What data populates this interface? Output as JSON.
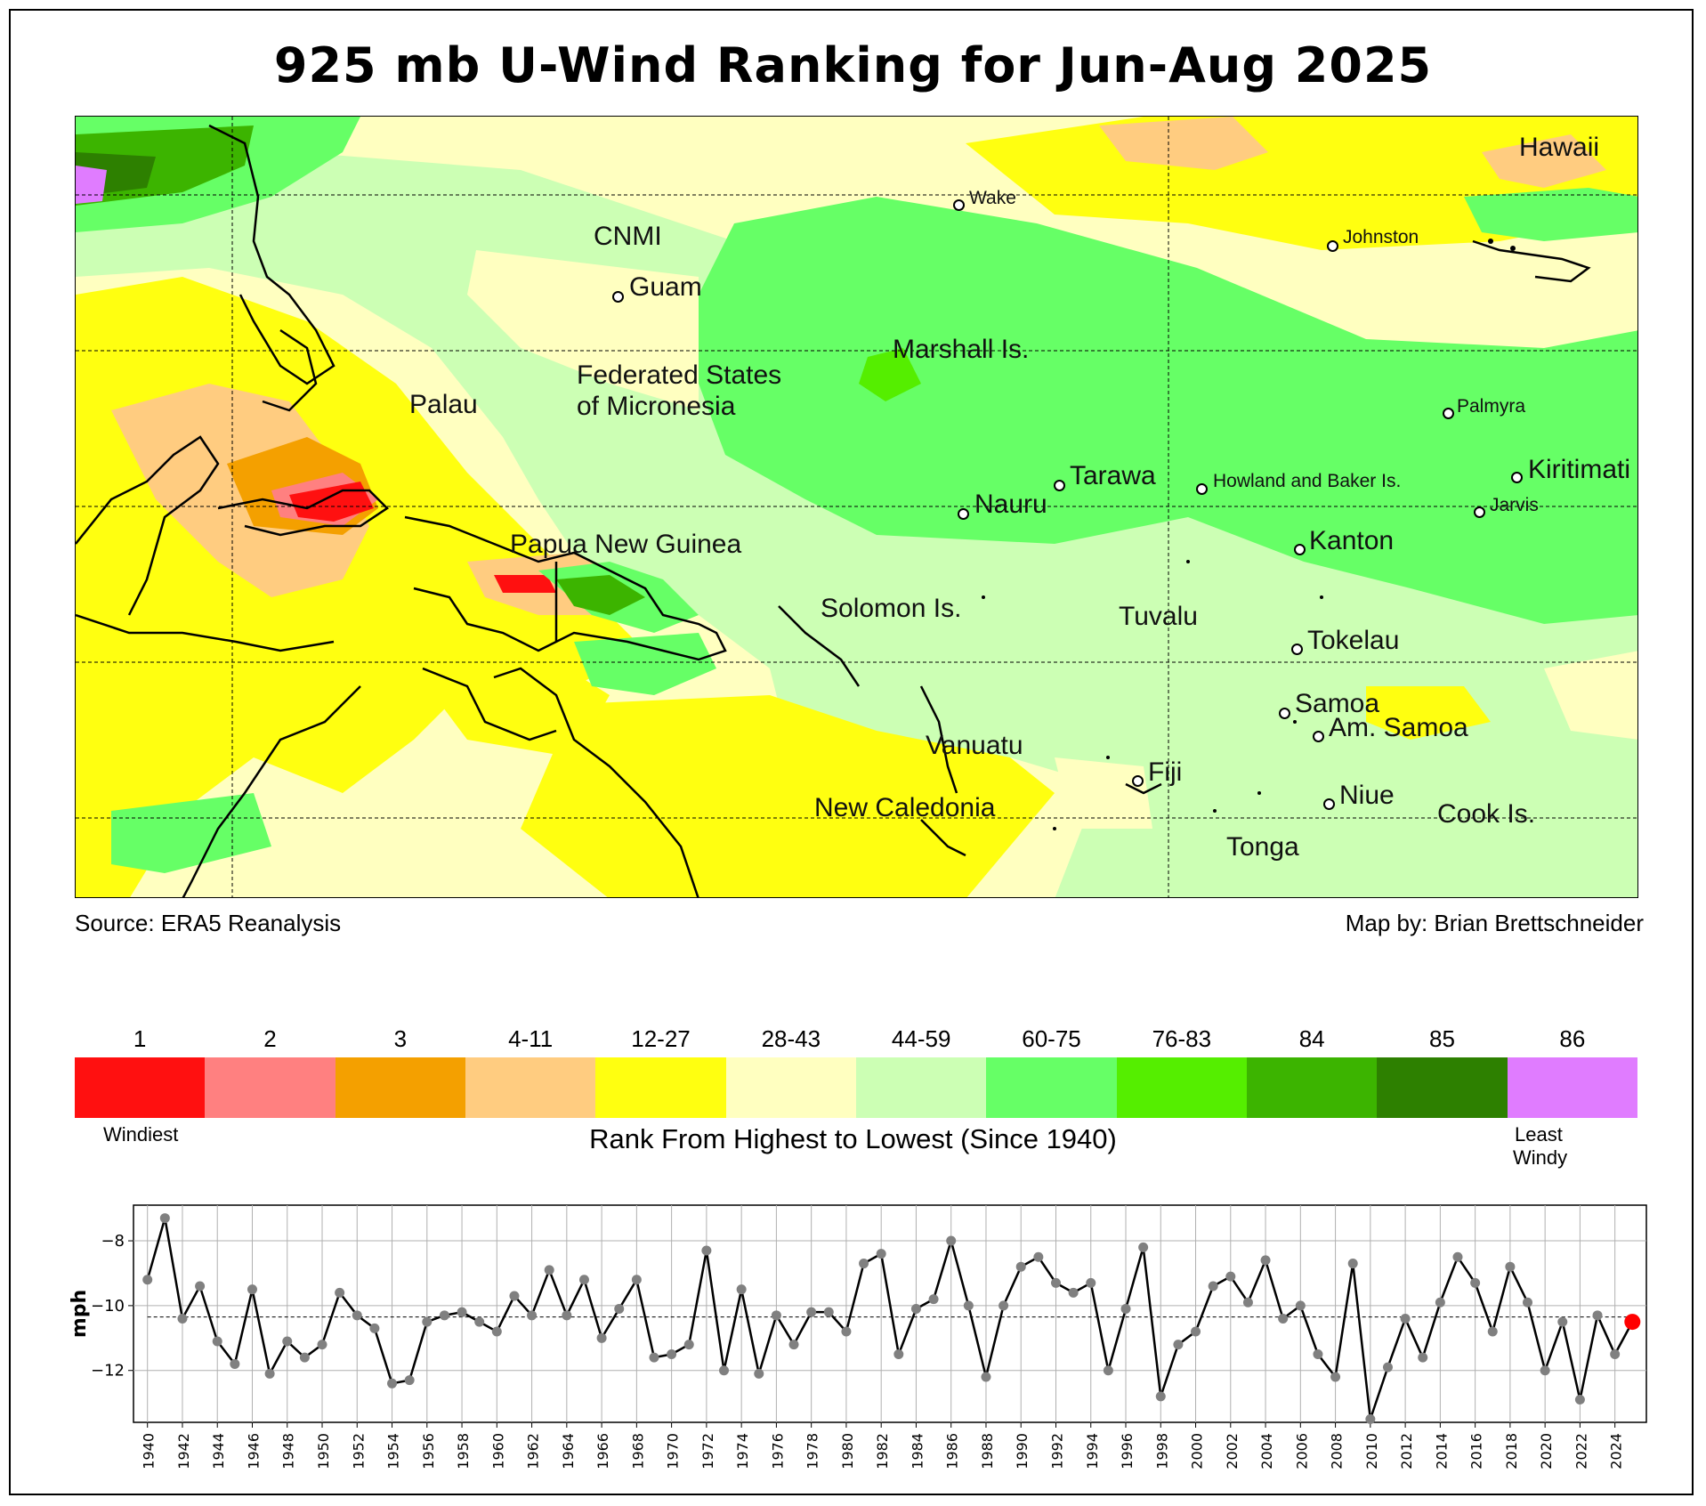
{
  "title": "925 mb U-Wind Ranking for Jun-Aug 2025",
  "map": {
    "labels": [
      {
        "id": "hawaii",
        "text": "Hawaii",
        "size": "lg"
      },
      {
        "id": "wake",
        "text": "Wake",
        "size": "sm"
      },
      {
        "id": "johnston",
        "text": "Johnston",
        "size": "sm"
      },
      {
        "id": "cnmi",
        "text": "CNMI",
        "size": "lg"
      },
      {
        "id": "guam",
        "text": "Guam",
        "size": "lg"
      },
      {
        "id": "marshall",
        "text": "Marshall Is.",
        "size": "lg"
      },
      {
        "id": "fsm1",
        "text": "Federated States",
        "size": "lg"
      },
      {
        "id": "fsm2",
        "text": "of Micronesia",
        "size": "lg"
      },
      {
        "id": "palau",
        "text": "Palau",
        "size": "lg"
      },
      {
        "id": "palmyra",
        "text": "Palmyra",
        "size": "sm"
      },
      {
        "id": "tarawa",
        "text": "Tarawa",
        "size": "lg"
      },
      {
        "id": "howland",
        "text": "Howland and Baker Is.",
        "size": "sm"
      },
      {
        "id": "kiritimati",
        "text": "Kiritimati",
        "size": "lg"
      },
      {
        "id": "nauru",
        "text": "Nauru",
        "size": "lg"
      },
      {
        "id": "jarvis",
        "text": "Jarvis",
        "size": "sm"
      },
      {
        "id": "kanton",
        "text": "Kanton",
        "size": "lg"
      },
      {
        "id": "png",
        "text": "Papua New Guinea",
        "size": "lg"
      },
      {
        "id": "solomon",
        "text": "Solomon Is.",
        "size": "lg"
      },
      {
        "id": "tuvalu",
        "text": "Tuvalu",
        "size": "lg"
      },
      {
        "id": "tokelau",
        "text": "Tokelau",
        "size": "lg"
      },
      {
        "id": "samoa",
        "text": "Samoa",
        "size": "lg"
      },
      {
        "id": "amsamoa",
        "text": "Am. Samoa",
        "size": "lg"
      },
      {
        "id": "vanuatu",
        "text": "Vanuatu",
        "size": "lg"
      },
      {
        "id": "fiji",
        "text": "Fiji",
        "size": "lg"
      },
      {
        "id": "niue",
        "text": "Niue",
        "size": "lg"
      },
      {
        "id": "newcal",
        "text": "New Caledonia",
        "size": "lg"
      },
      {
        "id": "cook",
        "text": "Cook Is.",
        "size": "lg"
      },
      {
        "id": "tonga",
        "text": "Tonga",
        "size": "lg"
      }
    ]
  },
  "credits": {
    "source": "Source: ERA5 Reanalysis",
    "author": "Map by: Brian Brettschneider"
  },
  "legend": {
    "categories": [
      {
        "label": "1",
        "color": "#ff1010"
      },
      {
        "label": "2",
        "color": "#ff8080"
      },
      {
        "label": "3",
        "color": "#f4a000"
      },
      {
        "label": "4-11",
        "color": "#ffcc80"
      },
      {
        "label": "12-27",
        "color": "#ffff10"
      },
      {
        "label": "28-43",
        "color": "#ffffc0"
      },
      {
        "label": "44-59",
        "color": "#ccffb4"
      },
      {
        "label": "60-75",
        "color": "#66ff66"
      },
      {
        "label": "76-83",
        "color": "#55ee00"
      },
      {
        "label": "84",
        "color": "#3cb400"
      },
      {
        "label": "85",
        "color": "#2d8000"
      },
      {
        "label": "86",
        "color": "#e07cff"
      }
    ],
    "low_label": "Windiest",
    "high_label_1": "Least",
    "high_label_2": "Windy",
    "axis_title": "Rank From Highest to Lowest (Since 1940)"
  },
  "chart_data": {
    "type": "line",
    "ylabel": "mph",
    "ylim": [
      -13.6,
      -6.9
    ],
    "yticks": [
      -8,
      -10,
      -12
    ],
    "xlim": [
      1939.2,
      2025.8
    ],
    "xticks_step": 2,
    "mean": -10.35,
    "highlight_year": 2025,
    "highlight_color": "#ff0000",
    "grid": true,
    "x": [
      1940,
      1941,
      1942,
      1943,
      1944,
      1945,
      1946,
      1947,
      1948,
      1949,
      1950,
      1951,
      1952,
      1953,
      1954,
      1955,
      1956,
      1957,
      1958,
      1959,
      1960,
      1961,
      1962,
      1963,
      1964,
      1965,
      1966,
      1967,
      1968,
      1969,
      1970,
      1971,
      1972,
      1973,
      1974,
      1975,
      1976,
      1977,
      1978,
      1979,
      1980,
      1981,
      1982,
      1983,
      1984,
      1985,
      1986,
      1987,
      1988,
      1989,
      1990,
      1991,
      1992,
      1993,
      1994,
      1995,
      1996,
      1997,
      1998,
      1999,
      2000,
      2001,
      2002,
      2003,
      2004,
      2005,
      2006,
      2007,
      2008,
      2009,
      2010,
      2011,
      2012,
      2013,
      2014,
      2015,
      2016,
      2017,
      2018,
      2019,
      2020,
      2021,
      2022,
      2023,
      2024,
      2025
    ],
    "y": [
      -9.2,
      -7.3,
      -10.4,
      -9.4,
      -11.1,
      -11.8,
      -9.5,
      -12.1,
      -11.1,
      -11.6,
      -11.2,
      -9.6,
      -10.3,
      -10.7,
      -12.4,
      -12.3,
      -10.5,
      -10.3,
      -10.2,
      -10.5,
      -10.8,
      -9.7,
      -10.3,
      -8.9,
      -10.3,
      -9.2,
      -11.0,
      -10.1,
      -9.2,
      -11.6,
      -11.5,
      -11.2,
      -8.3,
      -12.0,
      -9.5,
      -12.1,
      -10.3,
      -11.2,
      -10.2,
      -10.2,
      -10.8,
      -8.7,
      -8.4,
      -11.5,
      -10.1,
      -9.8,
      -8.0,
      -10.0,
      -12.2,
      -10.0,
      -8.8,
      -8.5,
      -9.3,
      -9.6,
      -9.3,
      -12.0,
      -10.1,
      -8.2,
      -12.8,
      -11.2,
      -10.8,
      -9.4,
      -9.1,
      -9.9,
      -8.6,
      -10.4,
      -10.0,
      -11.5,
      -12.2,
      -8.7,
      -13.5,
      -11.9,
      -10.4,
      -11.6,
      -9.9,
      -8.5,
      -9.3,
      -10.8,
      -8.8,
      -9.9,
      -12.0,
      -10.5,
      -12.9,
      -10.3,
      -11.5,
      -10.5
    ]
  }
}
